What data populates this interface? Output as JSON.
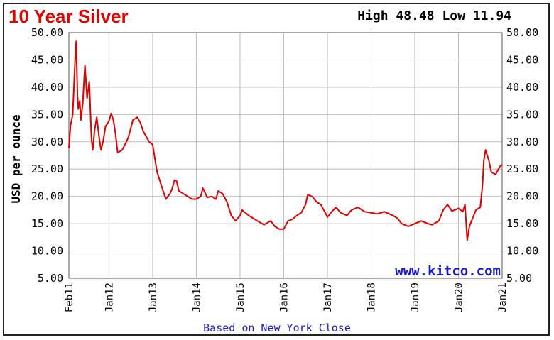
{
  "chart_data": {
    "type": "line",
    "title": "10 Year Silver",
    "stats": "High 48.48 Low 11.94",
    "ylabel": "USD per ounce",
    "xlabel": "Based on New York Close",
    "watermark": "www.kitco.com",
    "ylim": [
      5,
      50
    ],
    "y_ticks": [
      "5.00",
      "10.00",
      "15.00",
      "20.00",
      "25.00",
      "30.00",
      "35.00",
      "40.00",
      "45.00",
      "50.00"
    ],
    "x_ticks": [
      {
        "label": "Feb11",
        "x": 2011.083
      },
      {
        "label": "Jan12",
        "x": 2012.0
      },
      {
        "label": "Jan13",
        "x": 2013.0
      },
      {
        "label": "Jan14",
        "x": 2014.0
      },
      {
        "label": "Jan15",
        "x": 2015.0
      },
      {
        "label": "Jan16",
        "x": 2016.0
      },
      {
        "label": "Jan17",
        "x": 2017.0
      },
      {
        "label": "Jan18",
        "x": 2018.0
      },
      {
        "label": "Jan19",
        "x": 2019.0
      },
      {
        "label": "Jan20",
        "x": 2020.0
      },
      {
        "label": "Jan21",
        "x": 2021.0
      }
    ],
    "xlim": [
      2011.083,
      2021.0
    ],
    "grid": true,
    "line_color": "#e00000",
    "series": [
      {
        "x": [
          2011.083,
          2011.12,
          2011.17,
          2011.22,
          2011.25,
          2011.28,
          2011.3,
          2011.33,
          2011.36,
          2011.4,
          2011.45,
          2011.5,
          2011.55,
          2011.6,
          2011.63,
          2011.67,
          2011.72,
          2011.78,
          2011.82,
          2011.87,
          2011.92,
          2012.0,
          2012.05,
          2012.1,
          2012.15,
          2012.2,
          2012.3,
          2012.4,
          2012.45,
          2012.55,
          2012.65,
          2012.72,
          2012.78,
          2012.85,
          2012.92,
          2013.0,
          2013.1,
          2013.2,
          2013.3,
          2013.4,
          2013.45,
          2013.5,
          2013.55,
          2013.6,
          2013.7,
          2013.8,
          2013.9,
          2014.0,
          2014.1,
          2014.15,
          2014.25,
          2014.35,
          2014.45,
          2014.5,
          2014.6,
          2014.7,
          2014.8,
          2014.9,
          2015.0,
          2015.05,
          2015.2,
          2015.4,
          2015.55,
          2015.7,
          2015.8,
          2015.9,
          2016.0,
          2016.1,
          2016.2,
          2016.3,
          2016.4,
          2016.5,
          2016.55,
          2016.65,
          2016.75,
          2016.85,
          2016.95,
          2017.0,
          2017.1,
          2017.2,
          2017.3,
          2017.45,
          2017.55,
          2017.7,
          2017.85,
          2018.0,
          2018.15,
          2018.3,
          2018.5,
          2018.6,
          2018.7,
          2018.85,
          2019.0,
          2019.15,
          2019.3,
          2019.4,
          2019.55,
          2019.65,
          2019.75,
          2019.85,
          2020.0,
          2020.1,
          2020.15,
          2020.2,
          2020.25,
          2020.3,
          2020.4,
          2020.5,
          2020.55,
          2020.58,
          2020.62,
          2020.7,
          2020.75,
          2020.85,
          2020.95,
          2021.0
        ],
        "y": [
          28.9,
          33.0,
          35.0,
          44.0,
          48.4,
          38.5,
          36.0,
          37.5,
          34.0,
          37.0,
          44.0,
          38.0,
          41.0,
          30.5,
          28.5,
          32.0,
          34.5,
          30.5,
          28.5,
          30.2,
          32.8,
          33.8,
          35.2,
          34.0,
          31.5,
          28.0,
          28.5,
          30.0,
          31.0,
          34.0,
          34.5,
          33.5,
          32.0,
          31.0,
          30.0,
          29.5,
          24.5,
          22.0,
          19.5,
          20.5,
          21.5,
          23.0,
          22.8,
          21.0,
          20.5,
          20.0,
          19.5,
          19.5,
          20.0,
          21.5,
          19.8,
          20.0,
          19.5,
          21.0,
          20.5,
          19.0,
          16.5,
          15.5,
          16.5,
          17.5,
          16.5,
          15.5,
          14.8,
          15.5,
          14.5,
          14.0,
          14.0,
          15.5,
          15.8,
          16.5,
          17.0,
          18.5,
          20.3,
          20.0,
          19.0,
          18.5,
          17.0,
          16.2,
          17.2,
          18.0,
          17.0,
          16.5,
          17.5,
          18.0,
          17.2,
          17.0,
          16.8,
          17.2,
          16.5,
          16.0,
          15.0,
          14.5,
          15.0,
          15.5,
          15.0,
          14.8,
          15.5,
          17.5,
          18.5,
          17.3,
          17.8,
          17.2,
          18.5,
          12.0,
          14.5,
          15.5,
          17.5,
          18.0,
          22.0,
          26.5,
          28.5,
          26.5,
          24.5,
          24.0,
          25.5,
          25.8
        ]
      }
    ]
  }
}
